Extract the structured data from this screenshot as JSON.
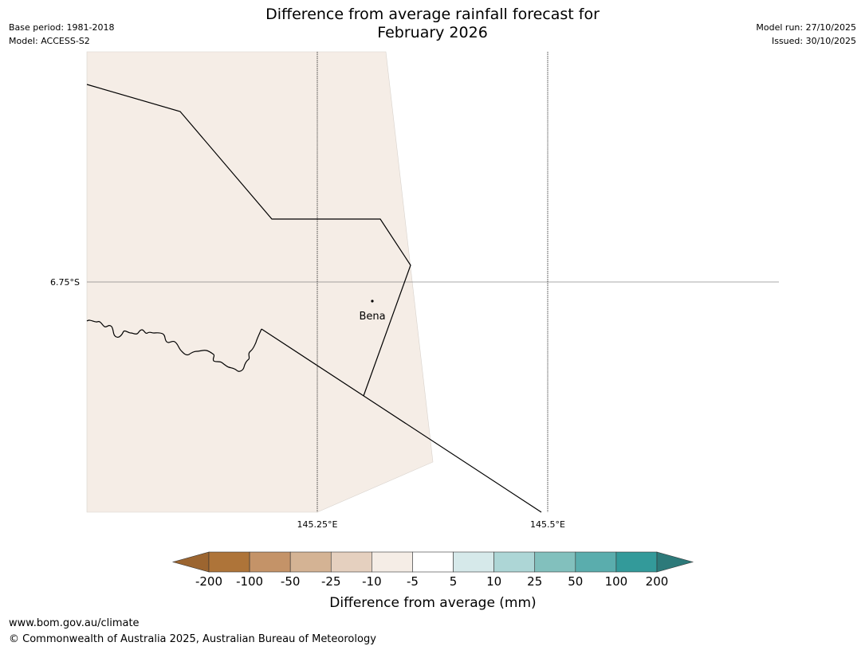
{
  "meta": {
    "base_period": "Base period: 1981-2018",
    "model": "Model: ACCESS-S2",
    "model_run": "Model run: 27/10/2025",
    "issued": "Issued: 30/10/2025"
  },
  "title": {
    "line1": "Difference from average rainfall forecast for",
    "line2": "February 2026"
  },
  "map": {
    "lat_label": "6.75°S",
    "lon_labels": [
      "145.25°E",
      "145.5°E"
    ],
    "place_name": "Bena",
    "fill_color": "#f5ede6",
    "border_color": "#000000"
  },
  "colorbar": {
    "title": "Difference from average (mm)",
    "labels": [
      "-200",
      "-100",
      "-50",
      "-25",
      "-10",
      "-5",
      "5",
      "10",
      "25",
      "50",
      "100",
      "200"
    ],
    "colors": [
      "#ae7439",
      "#c49368",
      "#d4b394",
      "#e5d0bf",
      "#f5ede6",
      "#ffffff",
      "#d6e9ea",
      "#add6d6",
      "#82c0bd",
      "#5aadad",
      "#339a9a"
    ],
    "under_color": "#9c6530",
    "over_color": "#2d7a7a"
  },
  "footer": {
    "url": "www.bom.gov.au/climate",
    "copyright": "© Commonwealth of Australia 2025, Australian Bureau of Meteorology"
  }
}
